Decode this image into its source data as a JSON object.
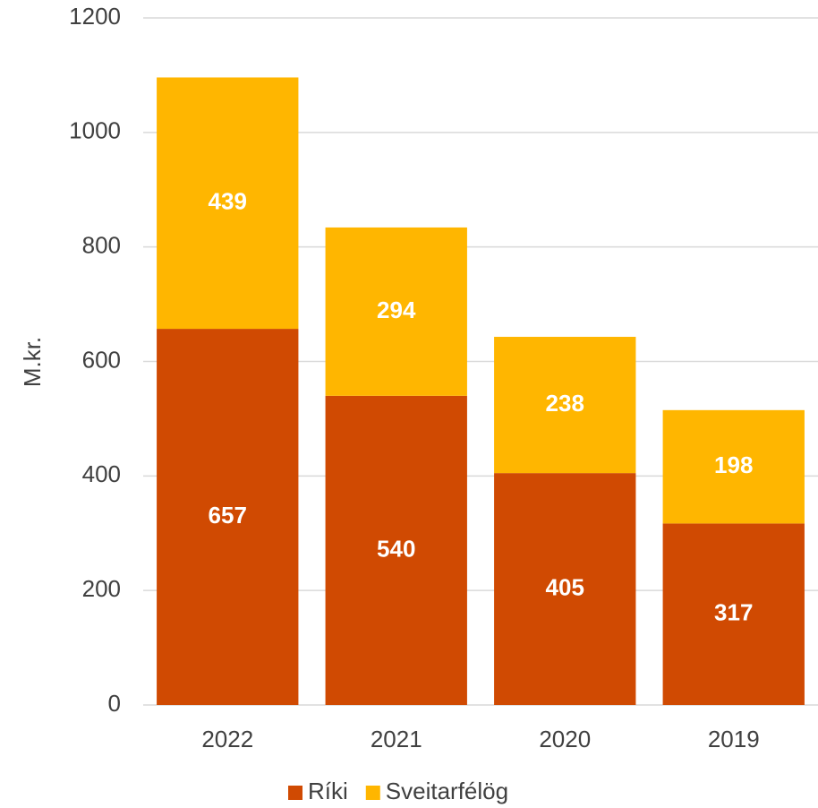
{
  "chart_data": {
    "type": "stacked_bar",
    "y_label": "M.kr.",
    "categories": [
      "2022",
      "2021",
      "2020",
      "2019"
    ],
    "series": [
      {
        "name": "Ríki",
        "color": "#d04a02",
        "values": [
          657,
          540,
          405,
          317
        ]
      },
      {
        "name": "Sveitarfélög",
        "color": "#ffb600",
        "values": [
          439,
          294,
          238,
          198
        ]
      }
    ],
    "ylim": [
      0,
      1200
    ],
    "yticks": [
      0,
      200,
      400,
      600,
      800,
      1000,
      1200
    ],
    "grid": true,
    "legend": "bottom"
  }
}
